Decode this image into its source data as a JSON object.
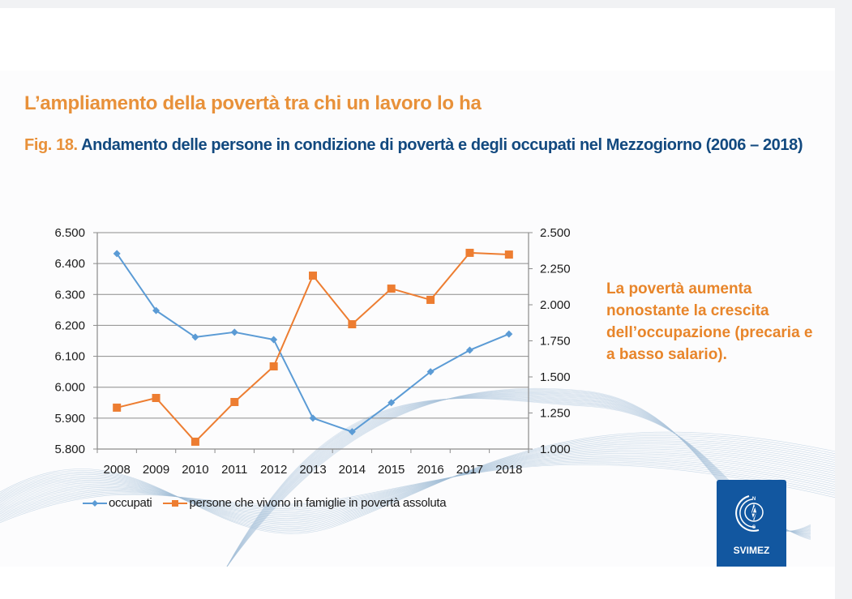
{
  "slide": {
    "title": "L’ampliamento della povertà tra chi un lavoro lo ha",
    "figure_number": "Fig. 18.",
    "figure_title": " Andamento delle persone in condizione di povertà e degli occupati nel Mezzogiorno (2006 – 2018)",
    "annotation": "La povertà aumenta nonostante la crescita dell’occupazione (precaria e a basso salario).",
    "logo_text": "SVIMEZ",
    "colors": {
      "title_orange": "#e8913a",
      "figure_blue": "#12497f",
      "occupati_blue": "#5b9bd5",
      "poverty_orange": "#ed7d31",
      "logo_blue": "#1257a0"
    }
  },
  "chart_data": {
    "type": "line",
    "title": "Andamento delle persone in condizione di povertà e degli occupati nel Mezzogiorno (2006 – 2018)",
    "categories": [
      "2008",
      "2009",
      "2010",
      "2011",
      "2012",
      "2013",
      "2014",
      "2015",
      "2016",
      "2017",
      "2018"
    ],
    "series": [
      {
        "name": "occupati",
        "axis": "left",
        "marker": "diamond",
        "color": "#5b9bd5",
        "values": [
          6432,
          6248,
          6162,
          6178,
          6154,
          5900,
          5856,
          5950,
          6050,
          6120,
          6172
        ]
      },
      {
        "name": "persone che vivono in famiglie in povertà assoluta",
        "axis": "right",
        "marker": "square",
        "color": "#ed7d31",
        "values": [
          1287,
          1354,
          1051,
          1326,
          1573,
          2202,
          1865,
          2112,
          2034,
          2360,
          2348
        ]
      }
    ],
    "y_left": {
      "range": [
        5800,
        6500
      ],
      "ticks": [
        5800,
        5900,
        6000,
        6100,
        6200,
        6300,
        6400,
        6500
      ],
      "tick_labels": [
        "5.800",
        "5.900",
        "6.000",
        "6.100",
        "6.200",
        "6.300",
        "6.400",
        "6.500"
      ]
    },
    "y_right": {
      "range": [
        1000,
        2500
      ],
      "ticks": [
        1000,
        1250,
        1500,
        1750,
        2000,
        2250,
        2500
      ],
      "tick_labels": [
        "1.000",
        "1.250",
        "1.500",
        "1.750",
        "2.000",
        "2.250",
        "2.500"
      ]
    },
    "xlabel": "",
    "ylabel": "",
    "grid": true,
    "legend_position": "bottom"
  }
}
